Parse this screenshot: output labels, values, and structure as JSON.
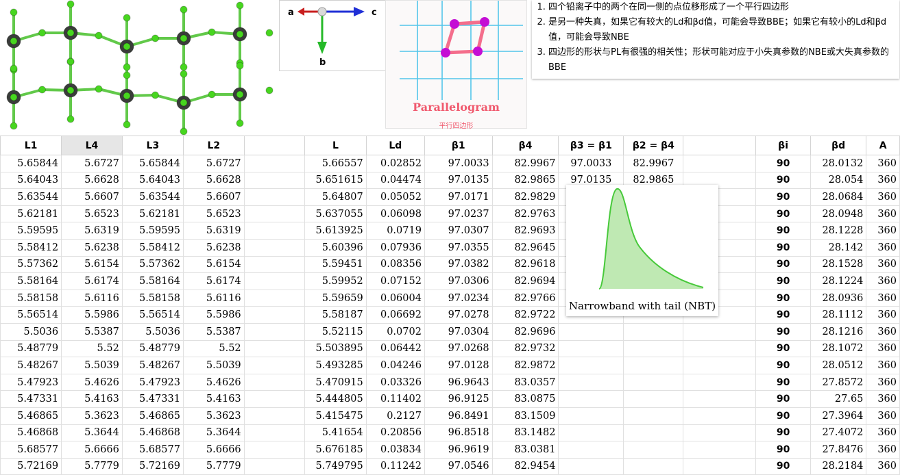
{
  "axes_labels": {
    "a": "a",
    "c": "c",
    "b": "b"
  },
  "parallelogram": {
    "title": "Parallelogram",
    "subtitle": "平行四边形"
  },
  "notes": [
    "四个铅离子中的两个在同一侧的点位移形成了一个平行四边形",
    "是另一种失真，如果它有较大的Ld和βd值，可能会导致BBE；如果它有较小的Ld和βd值，可能会导致NBE",
    "四边形的形状与PL有很强的相关性；形状可能对应于小失真参数的NBE或大失真参数的BBE"
  ],
  "nbt_caption": "Narrowband with tail (NBT)",
  "colors": {
    "lead_atom": "#3a3d3a",
    "halide_atom": "#47d61f",
    "bond_green": "#62c94a",
    "grid_blue": "#52c6ea",
    "para_pink": "#f46e8c",
    "para_atom": "#c40ed4",
    "nbt_fill": "#bfe9b3"
  },
  "table": {
    "headers": [
      "L1",
      "L4",
      "L3",
      "L2",
      "",
      "L",
      "Ld",
      "β1",
      "β4",
      "β3 = β1",
      "β2 = β4",
      "",
      "βi",
      "βd",
      "A"
    ],
    "rows": [
      [
        "5.65844",
        "5.6727",
        "5.65844",
        "5.6727",
        "",
        "5.66557",
        "0.02852",
        "97.0033",
        "82.9967",
        "97.0033",
        "82.9967",
        "",
        "90",
        "28.0132",
        "360"
      ],
      [
        "5.64043",
        "5.6628",
        "5.64043",
        "5.6628",
        "",
        "5.651615",
        "0.04474",
        "97.0135",
        "82.9865",
        "97.0135",
        "82.9865",
        "",
        "90",
        "28.054",
        "360"
      ],
      [
        "5.63544",
        "5.6607",
        "5.63544",
        "5.6607",
        "",
        "5.64807",
        "0.05052",
        "97.0171",
        "82.9829",
        "",
        "",
        "",
        "90",
        "28.0684",
        "360"
      ],
      [
        "5.62181",
        "5.6523",
        "5.62181",
        "5.6523",
        "",
        "5.637055",
        "0.06098",
        "97.0237",
        "82.9763",
        "",
        "",
        "",
        "90",
        "28.0948",
        "360"
      ],
      [
        "5.59595",
        "5.6319",
        "5.59595",
        "5.6319",
        "",
        "5.613925",
        "0.0719",
        "97.0307",
        "82.9693",
        "",
        "",
        "",
        "90",
        "28.1228",
        "360"
      ],
      [
        "5.58412",
        "5.6238",
        "5.58412",
        "5.6238",
        "",
        "5.60396",
        "0.07936",
        "97.0355",
        "82.9645",
        "",
        "",
        "",
        "90",
        "28.142",
        "360"
      ],
      [
        "5.57362",
        "5.6154",
        "5.57362",
        "5.6154",
        "",
        "5.59451",
        "0.08356",
        "97.0382",
        "82.9618",
        "",
        "",
        "",
        "90",
        "28.1528",
        "360"
      ],
      [
        "5.58164",
        "5.6174",
        "5.58164",
        "5.6174",
        "",
        "5.59952",
        "0.07152",
        "97.0306",
        "82.9694",
        "",
        "",
        "",
        "90",
        "28.1224",
        "360"
      ],
      [
        "5.58158",
        "5.6116",
        "5.58158",
        "5.6116",
        "",
        "5.59659",
        "0.06004",
        "97.0234",
        "82.9766",
        "",
        "",
        "",
        "90",
        "28.0936",
        "360"
      ],
      [
        "5.56514",
        "5.5986",
        "5.56514",
        "5.5986",
        "",
        "5.58187",
        "0.06692",
        "97.0278",
        "82.9722",
        "",
        "",
        "",
        "90",
        "28.1112",
        "360"
      ],
      [
        "5.5036",
        "5.5387",
        "5.5036",
        "5.5387",
        "",
        "5.52115",
        "0.0702",
        "97.0304",
        "82.9696",
        "",
        "",
        "",
        "90",
        "28.1216",
        "360"
      ],
      [
        "5.48779",
        "5.52",
        "5.48779",
        "5.52",
        "",
        "5.503895",
        "0.06442",
        "97.0268",
        "82.9732",
        "",
        "",
        "",
        "90",
        "28.1072",
        "360"
      ],
      [
        "5.48267",
        "5.5039",
        "5.48267",
        "5.5039",
        "",
        "5.493285",
        "0.04246",
        "97.0128",
        "82.9872",
        "",
        "",
        "",
        "90",
        "28.0512",
        "360"
      ],
      [
        "5.47923",
        "5.4626",
        "5.47923",
        "5.4626",
        "",
        "5.470915",
        "0.03326",
        "96.9643",
        "83.0357",
        "",
        "",
        "",
        "90",
        "27.8572",
        "360"
      ],
      [
        "5.47331",
        "5.4163",
        "5.47331",
        "5.4163",
        "",
        "5.444805",
        "0.11402",
        "96.9125",
        "83.0875",
        "",
        "",
        "",
        "90",
        "27.65",
        "360"
      ],
      [
        "5.46865",
        "5.3623",
        "5.46865",
        "5.3623",
        "",
        "5.415475",
        "0.2127",
        "96.8491",
        "83.1509",
        "",
        "",
        "",
        "90",
        "27.3964",
        "360"
      ],
      [
        "5.46868",
        "5.3644",
        "5.46868",
        "5.3644",
        "",
        "5.41654",
        "0.20856",
        "96.8518",
        "83.1482",
        "",
        "",
        "",
        "90",
        "27.4072",
        "360"
      ],
      [
        "5.68577",
        "5.6666",
        "5.68577",
        "5.6666",
        "",
        "5.676185",
        "0.03834",
        "96.9619",
        "83.0381",
        "",
        "",
        "",
        "90",
        "27.8476",
        "360"
      ],
      [
        "5.72169",
        "5.7779",
        "5.72169",
        "5.7779",
        "",
        "5.749795",
        "0.11242",
        "97.0546",
        "82.9454",
        "",
        "",
        "",
        "90",
        "28.2184",
        "360"
      ]
    ]
  }
}
